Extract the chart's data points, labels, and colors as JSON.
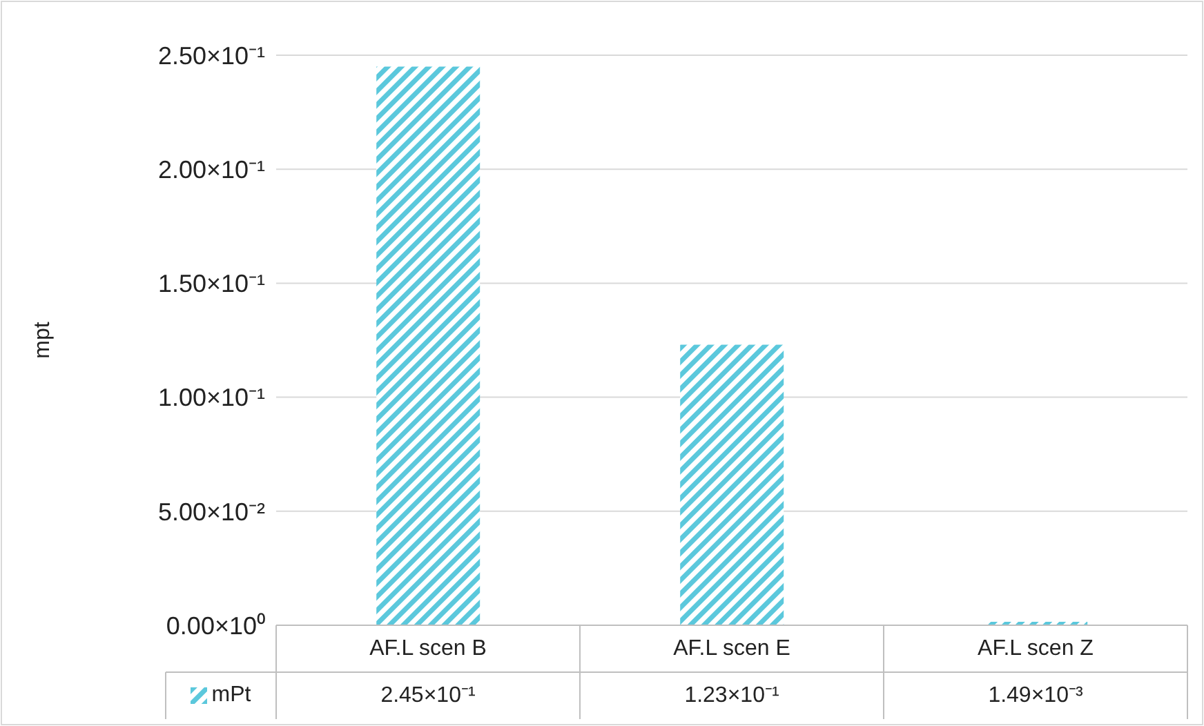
{
  "chart_data": {
    "type": "bar",
    "ylabel": "mpt",
    "categories": [
      "AF.L scen B",
      "AF.L scen E",
      "AF.L scen Z"
    ],
    "series": [
      {
        "name": "mPt",
        "color": "#5bc8dc",
        "values": [
          0.245,
          0.123,
          0.00149
        ],
        "value_labels": [
          "2.45×10⁻¹",
          "1.23×10⁻¹",
          "1.49×10⁻³"
        ]
      }
    ],
    "ylim": [
      0,
      0.25
    ],
    "yticks": [
      {
        "value": 0,
        "label": "0.00×10⁰"
      },
      {
        "value": 0.05,
        "label": "5.00×10⁻²"
      },
      {
        "value": 0.1,
        "label": "1.00×10⁻¹"
      },
      {
        "value": 0.15,
        "label": "1.50×10⁻¹"
      },
      {
        "value": 0.2,
        "label": "2.00×10⁻¹"
      },
      {
        "value": 0.25,
        "label": "2.50×10⁻¹"
      }
    ],
    "grid": "y",
    "legend": "bottom left"
  }
}
